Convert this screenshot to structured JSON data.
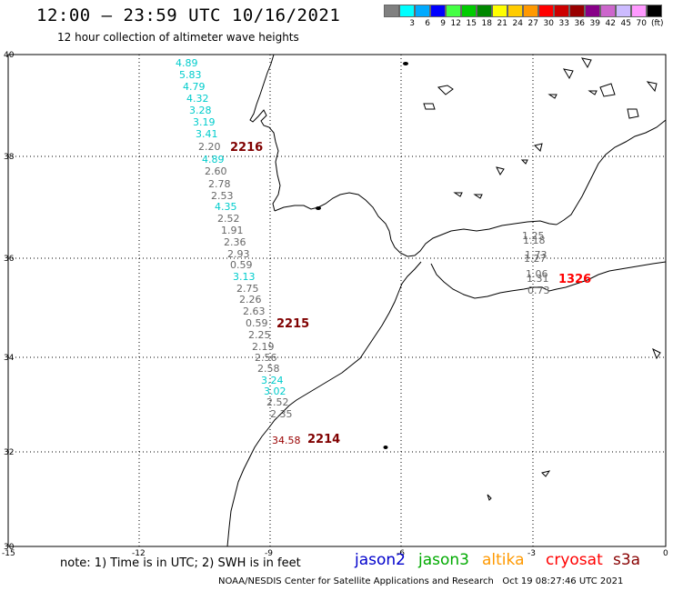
{
  "header": {
    "title": "12:00 – 23:59 UTC 10/16/2021",
    "subtitle": "12 hour collection of altimeter wave heights"
  },
  "colorbar": {
    "unit": "(ft)",
    "colors": [
      "#808080",
      "#00ffff",
      "#00aaff",
      "#0000ff",
      "#44ff44",
      "#00cc00",
      "#008800",
      "#ffff00",
      "#ffcc00",
      "#ff9900",
      "#ff0000",
      "#cc0000",
      "#990000",
      "#880088",
      "#cc66cc",
      "#ccbbff",
      "#ff99ff",
      "#000000"
    ],
    "labels": [
      "",
      "3",
      "6",
      "9",
      "12",
      "15",
      "18",
      "21",
      "24",
      "27",
      "30",
      "33",
      "36",
      "39",
      "42",
      "45",
      "70",
      ""
    ]
  },
  "axes": {
    "x_ticks": [
      "-15",
      "-12",
      "-9",
      "-6",
      "-3",
      "0"
    ],
    "y_ticks": [
      "40",
      "38",
      "36",
      "34",
      "32",
      "30"
    ]
  },
  "track_labels": [
    {
      "text": "2216",
      "color": "#800000"
    },
    {
      "text": "2215",
      "color": "#800000"
    },
    {
      "text": "2214",
      "color": "#800000"
    },
    {
      "text": "1326",
      "color": "#ff0000"
    }
  ],
  "wave_heights": [
    {
      "text": "4.89",
      "color": "#00cccc"
    },
    {
      "text": "5.83",
      "color": "#00cccc"
    },
    {
      "text": "4.79",
      "color": "#00cccc"
    },
    {
      "text": "4.32",
      "color": "#00cccc"
    },
    {
      "text": "3.28",
      "color": "#00cccc"
    },
    {
      "text": "3.19",
      "color": "#00cccc"
    },
    {
      "text": "3.41",
      "color": "#00cccc"
    },
    {
      "text": "2.20",
      "color": "#666666"
    },
    {
      "text": "4.89",
      "color": "#00cccc"
    },
    {
      "text": "2.60",
      "color": "#666666"
    },
    {
      "text": "2.78",
      "color": "#666666"
    },
    {
      "text": "2.53",
      "color": "#666666"
    },
    {
      "text": "4.35",
      "color": "#00cccc"
    },
    {
      "text": "2.52",
      "color": "#666666"
    },
    {
      "text": "1.91",
      "color": "#666666"
    },
    {
      "text": "2.36",
      "color": "#666666"
    },
    {
      "text": "2.93",
      "color": "#666666"
    },
    {
      "text": "0.59",
      "color": "#666666"
    },
    {
      "text": "3.13",
      "color": "#00cccc"
    },
    {
      "text": "2.75",
      "color": "#666666"
    },
    {
      "text": "2.26",
      "color": "#666666"
    },
    {
      "text": "2.63",
      "color": "#666666"
    },
    {
      "text": "0.59",
      "color": "#666666"
    },
    {
      "text": "2.25",
      "color": "#666666"
    },
    {
      "text": "2.19",
      "color": "#666666"
    },
    {
      "text": "2.56",
      "color": "#666666"
    },
    {
      "text": "2.58",
      "color": "#666666"
    },
    {
      "text": "3.24",
      "color": "#00cccc"
    },
    {
      "text": "3.02",
      "color": "#00cccc"
    },
    {
      "text": "2.52",
      "color": "#666666"
    },
    {
      "text": "2.35",
      "color": "#666666"
    },
    {
      "text": "34.58",
      "color": "#990000"
    },
    {
      "text": "1.25",
      "color": "#666666"
    },
    {
      "text": "1.18",
      "color": "#666666"
    },
    {
      "text": "1.73",
      "color": "#666666"
    },
    {
      "text": "1.27",
      "color": "#666666"
    },
    {
      "text": "1.06",
      "color": "#666666"
    },
    {
      "text": "1.31",
      "color": "#666666"
    },
    {
      "text": "0.73",
      "color": "#666666"
    }
  ],
  "note": "note: 1) Time is in UTC; 2) SWH is in feet",
  "satellites": [
    {
      "name": "jason2",
      "color": "#0000cc"
    },
    {
      "name": "jason3",
      "color": "#00aa00"
    },
    {
      "name": "altika",
      "color": "#ff9900"
    },
    {
      "name": "cryosat",
      "color": "#ff0000"
    },
    {
      "name": "s3a",
      "color": "#880000"
    }
  ],
  "footer": "NOAA/NESDIS Center for Satellite Applications and Research   Oct 19 08:27:46 UTC 2021"
}
